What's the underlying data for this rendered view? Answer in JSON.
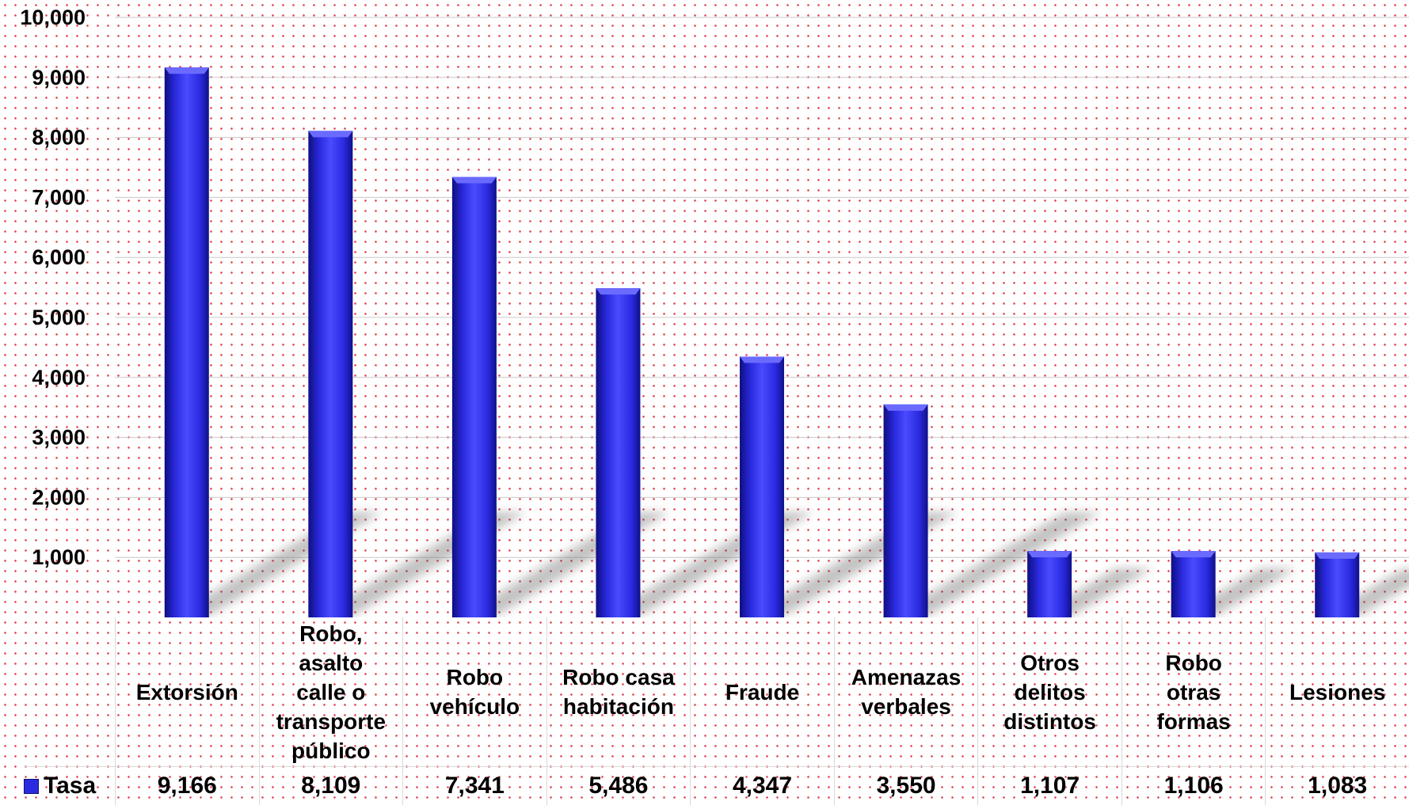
{
  "chart_data": {
    "type": "bar",
    "categories": [
      "Extorsión",
      "Robo, asalto calle o transporte público",
      "Robo vehículo",
      "Robo casa habitación",
      "Fraude",
      "Amenazas verbales",
      "Otros delitos distintos",
      "Robo otras formas",
      "Lesiones"
    ],
    "category_lines": [
      "Extorsión",
      "Robo,\nasalto\ncalle o\ntransporte\npúblico",
      "Robo\nvehículo",
      "Robo casa\nhabitación",
      "Fraude",
      "Amenazas\nverbales",
      "Otros\ndelitos\ndistintos",
      "Robo\notras\nformas",
      "Lesiones"
    ],
    "series": [
      {
        "name": "Tasa",
        "values": [
          9166,
          8109,
          7341,
          5486,
          4347,
          3550,
          1107,
          1106,
          1083
        ]
      }
    ],
    "value_labels": [
      "9,166",
      "8,109",
      "7,341",
      "5,486",
      "4,347",
      "3,550",
      "1,107",
      "1,106",
      "1,083"
    ],
    "y_ticks": [
      "-",
      "1,000",
      "2,000",
      "3,000",
      "4,000",
      "5,000",
      "6,000",
      "7,000",
      "8,000",
      "9,000",
      "10,000"
    ],
    "ylim": [
      0,
      10000
    ],
    "grid": true,
    "legend": "data-table",
    "colors": {
      "bar": "#2a2ae0",
      "bar_dark": "#0f0f80",
      "bar_light": "#6a6aff",
      "grid": "#c8c8c8"
    }
  }
}
